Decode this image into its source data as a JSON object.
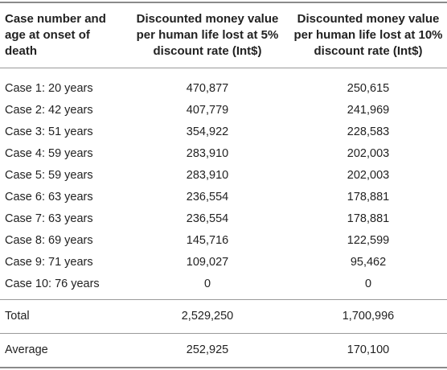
{
  "headers": {
    "case": "Case number and age at onset of death",
    "rate5": "Discounted money value per human life lost at 5% discount rate (Int$)",
    "rate10": "Discounted money value per human life lost at 10% discount rate (Int$)"
  },
  "rows": [
    {
      "case": "Case 1: 20 years",
      "rate5": "470,877",
      "rate10": "250,615"
    },
    {
      "case": "Case 2: 42 years",
      "rate5": "407,779",
      "rate10": "241,969"
    },
    {
      "case": "Case 3: 51 years",
      "rate5": "354,922",
      "rate10": "228,583"
    },
    {
      "case": "Case 4: 59 years",
      "rate5": "283,910",
      "rate10": "202,003"
    },
    {
      "case": "Case 5: 59 years",
      "rate5": "283,910",
      "rate10": "202,003"
    },
    {
      "case": "Case 6: 63 years",
      "rate5": "236,554",
      "rate10": "178,881"
    },
    {
      "case": "Case 7: 63 years",
      "rate5": "236,554",
      "rate10": "178,881"
    },
    {
      "case": "Case 8: 69 years",
      "rate5": "145,716",
      "rate10": "122,599"
    },
    {
      "case": "Case 9: 71 years",
      "rate5": "109,027",
      "rate10": "95,462"
    },
    {
      "case": "Case 10: 76 years",
      "rate5": "0",
      "rate10": "0"
    }
  ],
  "total": {
    "case": "Total",
    "rate5": "2,529,250",
    "rate10": "1,700,996"
  },
  "average": {
    "case": "Average",
    "rate5": "252,925",
    "rate10": "170,100"
  }
}
